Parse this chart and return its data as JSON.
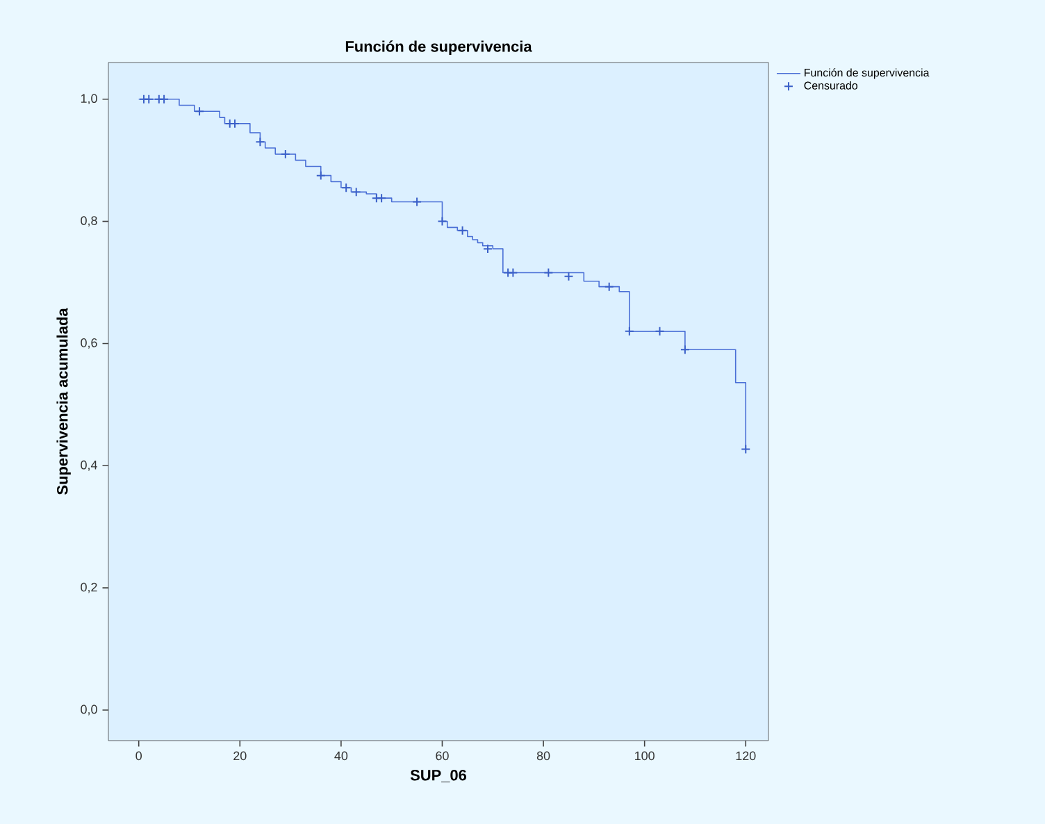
{
  "chart_data": {
    "type": "step",
    "title": "Función de supervivencia",
    "xlabel": "SUP_06",
    "ylabel": "Supervivencia acumulada",
    "xlim": [
      -6,
      124.5
    ],
    "ylim": [
      -0.05,
      1.06
    ],
    "xticks": [
      0,
      20,
      40,
      60,
      80,
      100,
      120
    ],
    "yticks": [
      {
        "value": 0,
        "label": "0,0"
      },
      {
        "value": 0.2,
        "label": "0,2"
      },
      {
        "value": 0.4,
        "label": "0,4"
      },
      {
        "value": 0.6,
        "label": "0,6"
      },
      {
        "value": 0.8,
        "label": "0,8"
      },
      {
        "value": 1,
        "label": "1,0"
      }
    ],
    "grid": false,
    "legend": "top right",
    "series": [
      {
        "name": "Función de supervivencia",
        "color": "#4a6fd6",
        "x": [
          0,
          8,
          11,
          16,
          17,
          22,
          24,
          25,
          27,
          31,
          33,
          36,
          38,
          40,
          42,
          45,
          47,
          50,
          60,
          61,
          63,
          65,
          66,
          67,
          68,
          70,
          72,
          88,
          91,
          95,
          97,
          108,
          118,
          120
        ],
        "values": [
          1.0,
          0.99,
          0.98,
          0.97,
          0.96,
          0.945,
          0.93,
          0.92,
          0.91,
          0.9,
          0.89,
          0.875,
          0.865,
          0.855,
          0.848,
          0.845,
          0.838,
          0.832,
          0.8,
          0.79,
          0.785,
          0.775,
          0.77,
          0.765,
          0.76,
          0.755,
          0.716,
          0.702,
          0.693,
          0.685,
          0.62,
          0.59,
          0.536,
          0.427
        ]
      },
      {
        "name": "Censurado",
        "type": "scatter",
        "marker": "cross",
        "color": "#3a5fc8",
        "x": [
          1,
          2,
          4,
          5,
          12,
          18,
          19,
          24,
          29,
          36,
          41,
          43,
          47,
          48,
          55,
          60,
          64,
          69,
          73,
          74,
          81,
          85,
          93,
          97,
          103,
          108,
          120
        ],
        "values": [
          1.0,
          1.0,
          1.0,
          1.0,
          0.98,
          0.96,
          0.96,
          0.93,
          0.91,
          0.875,
          0.855,
          0.848,
          0.838,
          0.838,
          0.832,
          0.8,
          0.785,
          0.755,
          0.716,
          0.716,
          0.716,
          0.71,
          0.693,
          0.62,
          0.62,
          0.59,
          0.427
        ]
      }
    ]
  }
}
